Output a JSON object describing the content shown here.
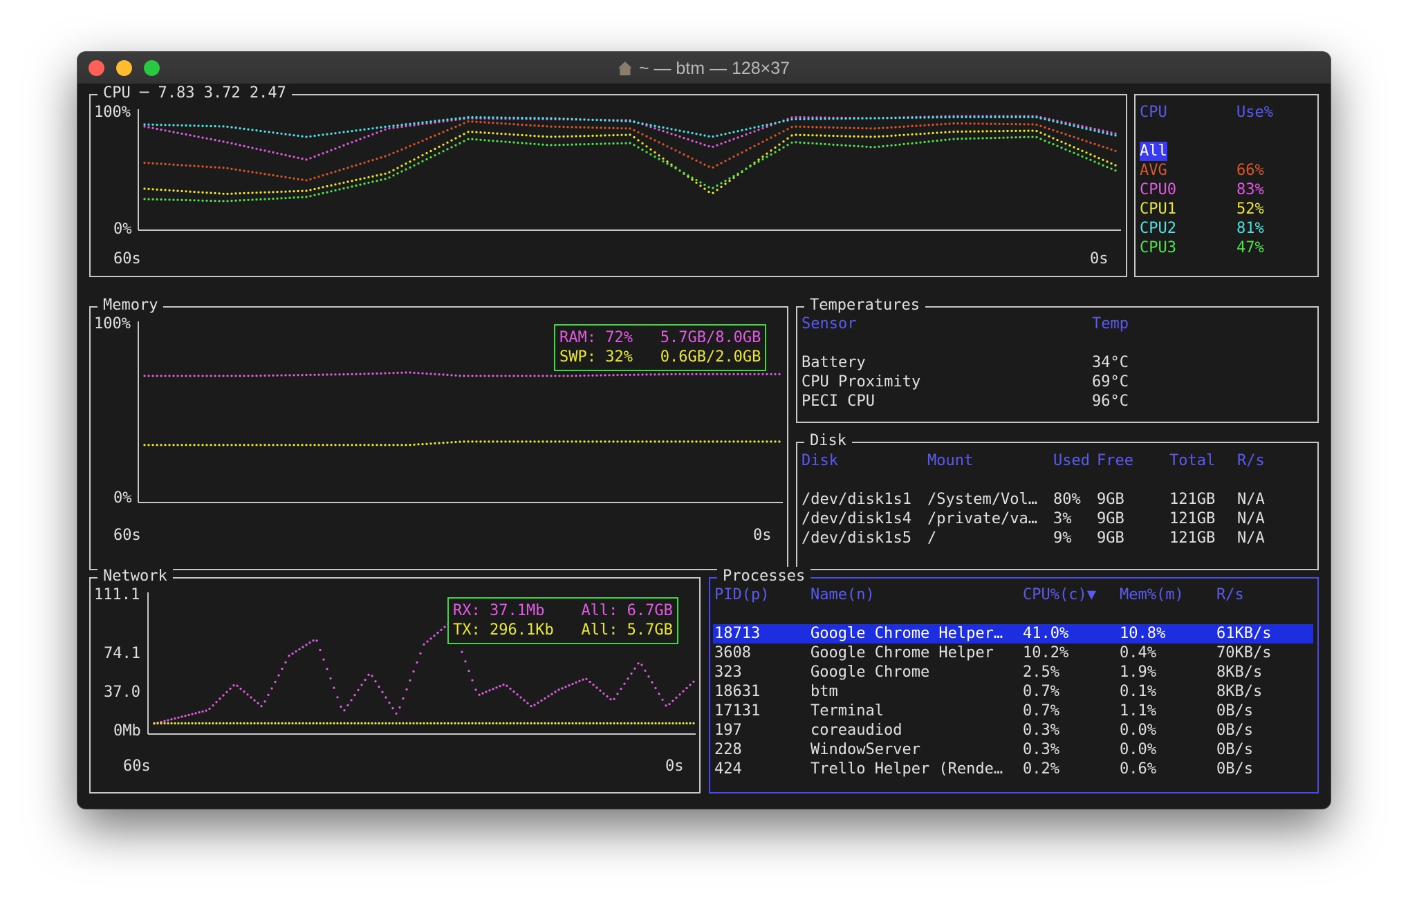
{
  "window": {
    "title": "~ — btm — 128×37"
  },
  "cpu": {
    "title": "CPU ─ 7.83 3.72 2.47",
    "y_labels": [
      "100%",
      "0%"
    ],
    "x_labels": [
      "60s",
      "0s"
    ],
    "table": {
      "headers": [
        "CPU",
        "Use%"
      ],
      "rows": [
        {
          "name": "All",
          "value": "",
          "color": "#3a3af0"
        },
        {
          "name": "AVG",
          "value": "66%",
          "color": "#d9562b"
        },
        {
          "name": "CPU0",
          "value": "83%",
          "color": "#e05ce0"
        },
        {
          "name": "CPU1",
          "value": "52%",
          "color": "#e8e83a"
        },
        {
          "name": "CPU2",
          "value": "81%",
          "color": "#4fe3e3"
        },
        {
          "name": "CPU3",
          "value": "47%",
          "color": "#4fe34f"
        }
      ]
    }
  },
  "memory": {
    "title": "Memory",
    "y_labels": [
      "100%",
      "0%"
    ],
    "x_labels": [
      "60s",
      "0s"
    ],
    "legend": {
      "ram": {
        "label": "RAM: 72%",
        "value": "5.7GB/8.0GB"
      },
      "swp": {
        "label": "SWP: 32%",
        "value": "0.6GB/2.0GB"
      }
    }
  },
  "temperatures": {
    "title": "Temperatures",
    "headers": [
      "Sensor",
      "Temp"
    ],
    "rows": [
      [
        "Battery",
        "34°C"
      ],
      [
        "CPU Proximity",
        "69°C"
      ],
      [
        "PECI CPU",
        "96°C"
      ]
    ]
  },
  "disk": {
    "title": "Disk",
    "headers": [
      "Disk",
      "Mount",
      "Used",
      "Free",
      "Total",
      "R/s"
    ],
    "rows": [
      [
        "/dev/disk1s1",
        "/System/Vol…",
        "80%",
        "9GB",
        "121GB",
        "N/A"
      ],
      [
        "/dev/disk1s4",
        "/private/va…",
        "3%",
        "9GB",
        "121GB",
        "N/A"
      ],
      [
        "/dev/disk1s5",
        "/",
        "9%",
        "9GB",
        "121GB",
        "N/A"
      ]
    ]
  },
  "network": {
    "title": "Network",
    "y_labels": [
      "111.1",
      "74.1",
      "37.0",
      "0Mb"
    ],
    "x_labels": [
      "60s",
      "0s"
    ],
    "legend": {
      "rx": {
        "label": "RX: 37.1Mb",
        "total": "All: 6.7GB"
      },
      "tx": {
        "label": "TX: 296.1Kb",
        "total": "All: 5.7GB"
      }
    }
  },
  "processes": {
    "title": "Processes",
    "headers": [
      "PID(p)",
      "Name(n)",
      "CPU%(c)▼",
      "Mem%(m)",
      "R/s"
    ],
    "rows": [
      [
        "18713",
        "Google Chrome Helper…",
        "41.0%",
        "10.8%",
        "61KB/s"
      ],
      [
        "3608",
        "Google Chrome Helper",
        "10.2%",
        "0.4%",
        "70KB/s"
      ],
      [
        "323",
        "Google Chrome",
        "2.5%",
        "1.9%",
        "8KB/s"
      ],
      [
        "18631",
        "btm",
        "0.7%",
        "0.1%",
        "8KB/s"
      ],
      [
        "17131",
        "Terminal",
        "0.7%",
        "1.1%",
        "0B/s"
      ],
      [
        "197",
        "coreaudiod",
        "0.3%",
        "0.0%",
        "0B/s"
      ],
      [
        "228",
        "WindowServer",
        "0.3%",
        "0.0%",
        "0B/s"
      ],
      [
        "424",
        "Trello Helper (Rende…",
        "0.2%",
        "0.6%",
        "0B/s"
      ]
    ],
    "selected_row": 0
  },
  "chart_data": [
    {
      "type": "line",
      "x": [
        -60,
        -55,
        -50,
        -45,
        -40,
        -35,
        -30,
        -25,
        -20,
        -15,
        -10,
        -5,
        0
      ],
      "ylim": [
        0,
        100
      ],
      "series": [
        {
          "name": "AVG",
          "color": "#d9562b",
          "values": [
            55,
            50,
            38,
            62,
            95,
            90,
            88,
            50,
            90,
            88,
            93,
            92,
            66
          ]
        },
        {
          "name": "CPU0",
          "color": "#e05ce0",
          "values": [
            90,
            75,
            58,
            88,
            98,
            97,
            96,
            70,
            99,
            98,
            100,
            100,
            83
          ]
        },
        {
          "name": "CPU1",
          "color": "#e8e83a",
          "values": [
            30,
            25,
            28,
            45,
            85,
            80,
            82,
            25,
            82,
            80,
            85,
            86,
            52
          ]
        },
        {
          "name": "CPU2",
          "color": "#4fe3e3",
          "values": [
            92,
            90,
            80,
            90,
            99,
            98,
            95,
            80,
            97,
            98,
            99,
            99,
            81
          ]
        },
        {
          "name": "CPU3",
          "color": "#4fe34f",
          "values": [
            20,
            18,
            22,
            40,
            78,
            72,
            74,
            30,
            75,
            70,
            78,
            80,
            47
          ]
        }
      ]
    },
    {
      "type": "line",
      "x": [
        -60,
        -50,
        -40,
        -35,
        -30,
        -20,
        -10,
        0
      ],
      "ylim": [
        0,
        100
      ],
      "series": [
        {
          "name": "RAM",
          "color": "#e05ce0",
          "values": [
            71,
            71,
            72,
            73,
            71,
            71,
            72,
            72
          ]
        },
        {
          "name": "SWP",
          "color": "#e8e83a",
          "values": [
            30,
            30,
            30,
            30,
            32,
            32,
            32,
            32
          ]
        }
      ]
    },
    {
      "type": "line",
      "x": [
        -60,
        -54,
        -51,
        -48,
        -45,
        -42,
        -39,
        -36,
        -33,
        -30,
        -27,
        -24,
        -21,
        -18,
        -15,
        -12,
        -9,
        -6,
        -3,
        0
      ],
      "ylim": [
        0,
        111.1
      ],
      "series": [
        {
          "name": "RX",
          "color": "#e05ce0",
          "values": [
            0,
            12,
            35,
            15,
            60,
            75,
            10,
            45,
            8,
            70,
            90,
            25,
            35,
            15,
            30,
            40,
            20,
            55,
            15,
            37.1
          ]
        },
        {
          "name": "TX",
          "color": "#e8e83a",
          "values": [
            0.3,
            0.3,
            0.3,
            0.3,
            0.3,
            0.3,
            0.3,
            0.3,
            0.3,
            0.3,
            0.3,
            0.3,
            0.3,
            0.3,
            0.3,
            0.3,
            0.3,
            0.3,
            0.3,
            0.3
          ]
        }
      ]
    }
  ]
}
